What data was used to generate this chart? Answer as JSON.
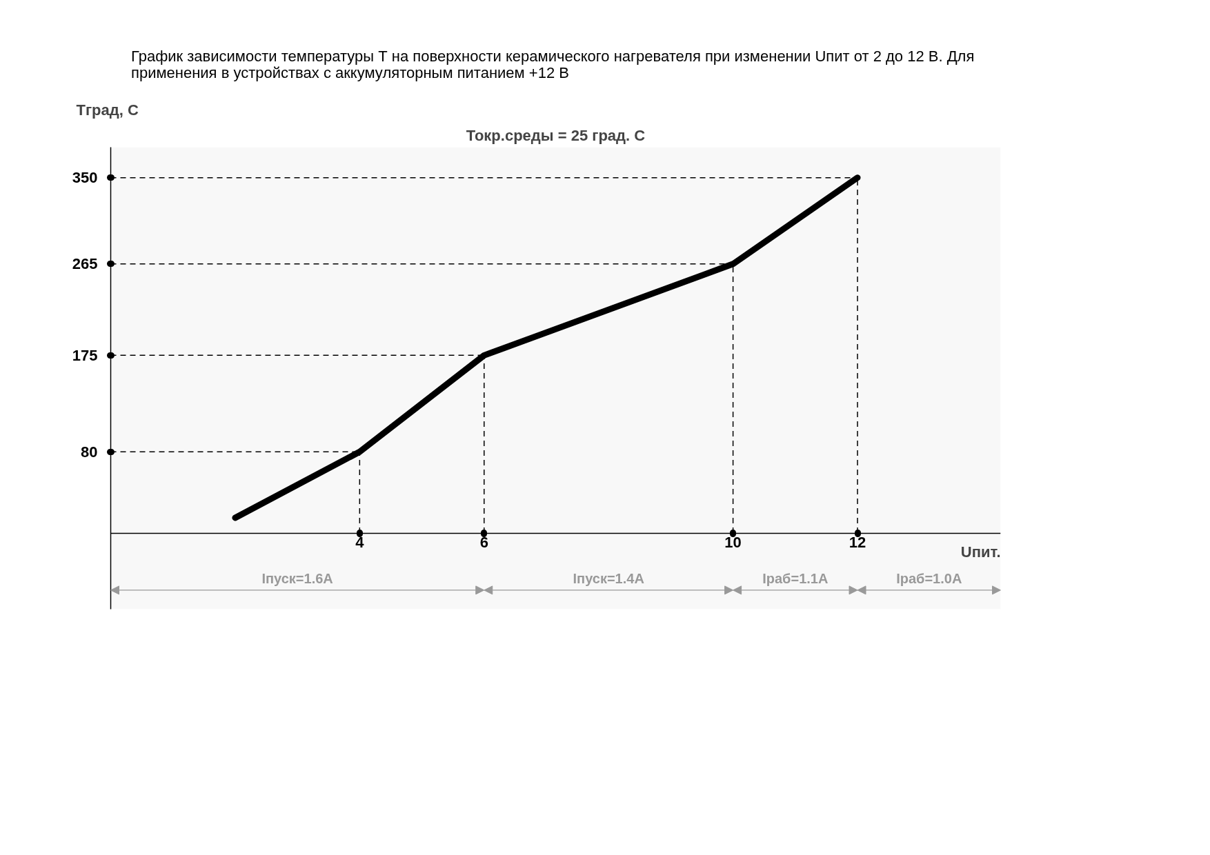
{
  "chart_data": {
    "type": "line",
    "title": "График зависимости температуры Т на поверхности керамического нагревателя при изменении Uпит от 2 до 12 В. Для применения в устройствах с аккумуляторным питанием +12 В",
    "subtitle": "Токр.среды = 25 град. С",
    "xlabel": "Uпит.",
    "ylabel": "Тград, С",
    "series": [
      {
        "color": "#000000",
        "x": [
          2,
          4,
          6,
          10,
          12
        ],
        "values": [
          15,
          80,
          175,
          265,
          350
        ]
      }
    ],
    "xlim": [
      0,
      14.3
    ],
    "ylim": [
      -75,
      380
    ],
    "xticks": [
      4,
      6,
      10,
      12
    ],
    "yticks": [
      80,
      175,
      265,
      350
    ],
    "ref_lines": [
      {
        "axis": "y",
        "value": 350,
        "line_style": "dashed",
        "color": "#000000"
      },
      {
        "axis": "y",
        "value": 265,
        "line_style": "dashed",
        "color": "#000000"
      },
      {
        "axis": "y",
        "value": 175,
        "line_style": "dashed",
        "color": "#000000"
      },
      {
        "axis": "y",
        "value": 80,
        "line_style": "dashed",
        "color": "#000000"
      },
      {
        "axis": "x",
        "value": 4,
        "line_style": "dashed",
        "color": "#000000"
      },
      {
        "axis": "x",
        "value": 6,
        "line_style": "dashed",
        "color": "#000000"
      },
      {
        "axis": "x",
        "value": 10,
        "line_style": "dashed",
        "color": "#000000"
      },
      {
        "axis": "x",
        "value": 12,
        "line_style": "dashed",
        "color": "#000000"
      }
    ],
    "bands": [
      {
        "axis": "x",
        "from": 0,
        "to": 6,
        "label": "Iпуск=1.6A",
        "color": "#999999"
      },
      {
        "axis": "x",
        "from": 6,
        "to": 10,
        "label": "Iпуск=1.4A",
        "color": "#999999"
      },
      {
        "axis": "x",
        "from": 10,
        "to": 12,
        "label": "Iраб=1.1A",
        "color": "#999999"
      },
      {
        "axis": "x",
        "from": 12,
        "to": 14.3,
        "label": "Iраб=1.0A",
        "color": "#999999"
      }
    ]
  }
}
